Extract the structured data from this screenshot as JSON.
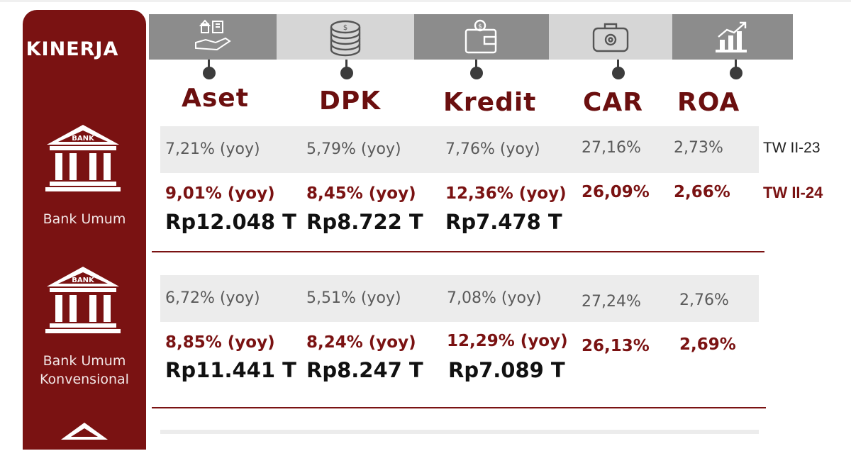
{
  "sidebar": {
    "title": "KINERJA",
    "icon_text": "BANK",
    "section1_label": "Bank Umum",
    "section2_label_line1": "Bank Umum",
    "section2_label_line2": "Konvensional"
  },
  "headers": {
    "aset": "Aset",
    "dpk": "DPK",
    "kredit": "Kredit",
    "car": "CAR",
    "roa": "ROA"
  },
  "icons": [
    "house-in-hand-icon",
    "coin-stack-icon",
    "wallet-icon",
    "briefcase-gear-icon",
    "growth-chart-icon"
  ],
  "periods": {
    "prev": "TW II-23",
    "cur": "TW II-24"
  },
  "bank_umum": {
    "prev": {
      "aset": "7,21% (yoy)",
      "dpk": "5,79% (yoy)",
      "kredit": "7,76% (yoy)",
      "car": "27,16%",
      "roa": "2,73%"
    },
    "cur": {
      "aset": "9,01% (yoy)",
      "dpk": "8,45% (yoy)",
      "kredit": "12,36% (yoy)",
      "car": "26,09%",
      "roa": "2,66%"
    },
    "amount": {
      "aset": "Rp12.048 T",
      "dpk": "Rp8.722 T",
      "kredit": "Rp7.478 T"
    }
  },
  "bank_umum_konvensional": {
    "prev": {
      "aset": "6,72% (yoy)",
      "dpk": "5,51% (yoy)",
      "kredit": "7,08% (yoy)",
      "car": "27,24%",
      "roa": "2,76%"
    },
    "cur": {
      "aset": "8,85% (yoy)",
      "dpk": "8,24% (yoy)",
      "kredit": "12,29% (yoy)",
      "car": "26,13%",
      "roa": "2,69%"
    },
    "amount": {
      "aset": "Rp11.441 T",
      "dpk": "Rp8.247 T",
      "kredit": "Rp7.089 T"
    }
  },
  "colors": {
    "brand": "#7a1212",
    "header_text": "#6b0f0f",
    "iconbar_dark": "#8c8c8c",
    "iconbar_light": "#d6d6d6"
  }
}
